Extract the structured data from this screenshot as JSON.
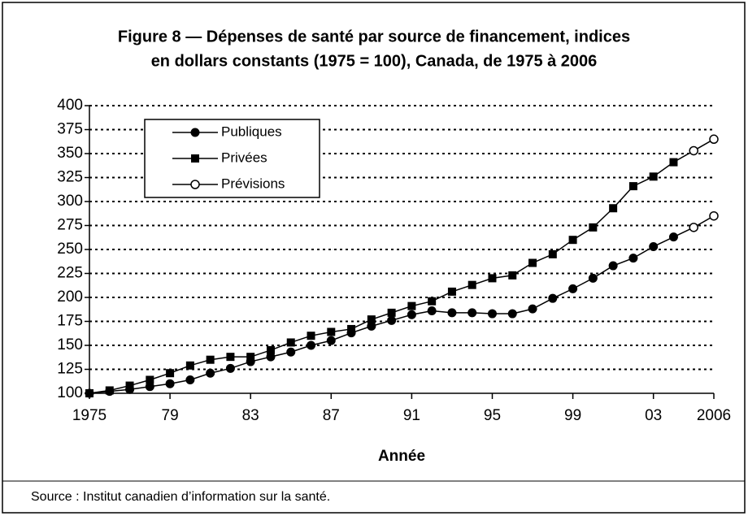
{
  "chart_data": {
    "type": "line",
    "title": "Figure 8 — Dépenses de santé par source de financement, indices",
    "subtitle": "en dollars constants (1975 = 100), Canada, de 1975 à 2006",
    "x_label": "Année",
    "source": "Source : Institut canadien d’information sur la santé.",
    "x": [
      1975,
      1976,
      1977,
      1978,
      1979,
      1980,
      1981,
      1982,
      1983,
      1984,
      1985,
      1986,
      1987,
      1988,
      1989,
      1990,
      1991,
      1992,
      1993,
      1994,
      1995,
      1996,
      1997,
      1998,
      1999,
      2000,
      2001,
      2002,
      2003,
      2004,
      2005,
      2006
    ],
    "series": [
      {
        "name": "Publiques",
        "color": "#000000",
        "marker": "circle",
        "values": [
          100,
          102,
          104,
          107,
          110,
          114,
          121,
          126,
          133,
          138,
          143,
          150,
          155,
          163,
          170,
          176,
          182,
          186,
          184,
          184,
          183,
          183,
          188,
          199,
          209,
          220,
          233,
          241,
          253,
          263,
          273,
          285
        ]
      },
      {
        "name": "Privées",
        "color": "#000000",
        "marker": "square",
        "values": [
          100,
          103,
          108,
          114,
          121,
          129,
          135,
          138,
          138,
          145,
          153,
          160,
          164,
          167,
          177,
          184,
          191,
          196,
          206,
          213,
          220,
          223,
          236,
          245,
          260,
          273,
          293,
          316,
          326,
          341,
          353,
          365
        ]
      },
      {
        "name": "Prévisions",
        "color": "#000000",
        "marker": "open-circle",
        "x": [
          2005,
          2006
        ]
      }
    ],
    "xlim": [
      1975,
      2006
    ],
    "xticks": [
      1975,
      {
        "value": 1979,
        "label": "79"
      },
      {
        "value": 1983,
        "label": "83"
      },
      {
        "value": 1987,
        "label": "87"
      },
      {
        "value": 1991,
        "label": "91"
      },
      {
        "value": 1995,
        "label": "95"
      },
      {
        "value": 1999,
        "label": "99"
      },
      {
        "value": 2003,
        "label": "03"
      },
      2006
    ],
    "ylim": [
      100,
      400
    ],
    "yticks": [
      100,
      125,
      150,
      175,
      200,
      225,
      250,
      275,
      300,
      325,
      350,
      375,
      400
    ],
    "grid": true,
    "legend": "upper left"
  }
}
